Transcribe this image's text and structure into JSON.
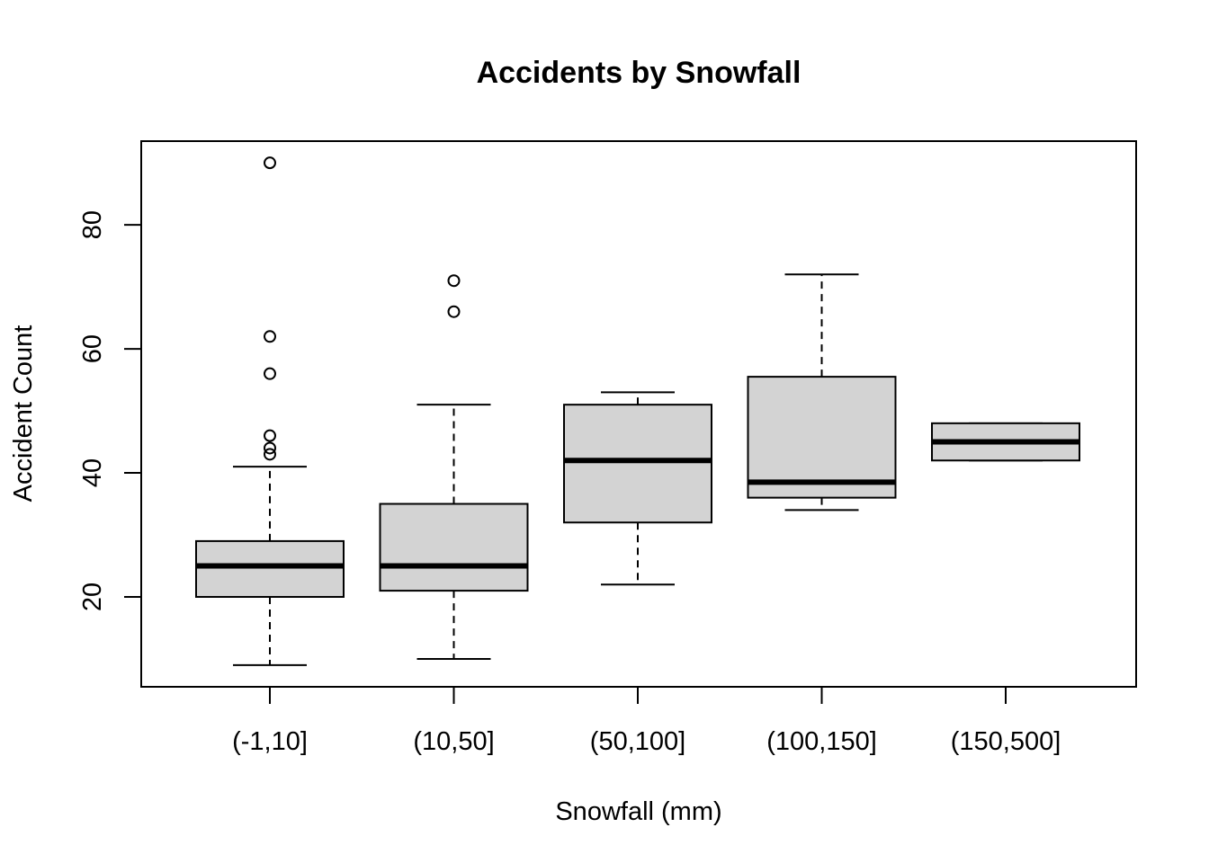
{
  "chart_data": {
    "type": "boxplot",
    "title": "Accidents by Snowfall",
    "xlabel": "Snowfall (mm)",
    "ylabel": "Accident Count",
    "ylim": [
      5.5,
      93.5
    ],
    "yticks": [
      20,
      40,
      60,
      80
    ],
    "grid": false,
    "categories": [
      "(-1,10]",
      "(10,50]",
      "(50,100]",
      "(100,150]",
      "(150,500]"
    ],
    "boxes": [
      {
        "category": "(-1,10]",
        "whisker_low": 9,
        "q1": 20,
        "median": 25,
        "q3": 29,
        "whisker_high": 41,
        "outliers": [
          43,
          44,
          46,
          56,
          62,
          90
        ]
      },
      {
        "category": "(10,50]",
        "whisker_low": 10,
        "q1": 21,
        "median": 25,
        "q3": 35,
        "whisker_high": 51,
        "outliers": [
          66,
          71
        ]
      },
      {
        "category": "(50,100]",
        "whisker_low": 22,
        "q1": 32,
        "median": 42,
        "q3": 51,
        "whisker_high": 53,
        "outliers": []
      },
      {
        "category": "(100,150]",
        "whisker_low": 34,
        "q1": 36,
        "median": 38.5,
        "q3": 55.5,
        "whisker_high": 72,
        "outliers": []
      },
      {
        "category": "(150,500]",
        "whisker_low": 42,
        "q1": 42,
        "median": 45,
        "q3": 48,
        "whisker_high": 48,
        "outliers": []
      }
    ],
    "colors": {
      "box_fill": "#d3d3d3",
      "stroke": "#000000"
    }
  }
}
